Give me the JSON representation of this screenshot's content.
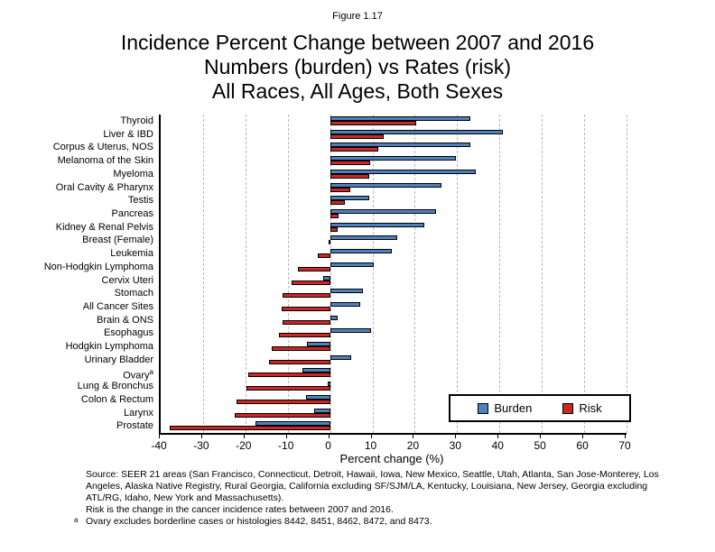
{
  "figure_label": "Figure 1.17",
  "title_lines": [
    "Incidence Percent Change between 2007 and 2016",
    "Numbers (burden) vs Rates (risk)",
    "All Races, All Ages, Both Sexes"
  ],
  "chart_data": {
    "type": "bar",
    "orientation": "horizontal",
    "xlabel": "Percent change (%)",
    "xlim": [
      -40,
      70
    ],
    "xticks": [
      -40,
      -30,
      -20,
      -10,
      0,
      10,
      20,
      30,
      40,
      50,
      60,
      70
    ],
    "grid": "dashed vertical at each 10",
    "legend_position": "inside bottom-right",
    "categories": [
      {
        "label": "Thyroid"
      },
      {
        "label": "Liver & IBD"
      },
      {
        "label": "Corpus & Uterus, NOS"
      },
      {
        "label": "Melanoma of the Skin"
      },
      {
        "label": "Myeloma"
      },
      {
        "label": "Oral Cavity & Pharynx"
      },
      {
        "label": "Testis"
      },
      {
        "label": "Pancreas"
      },
      {
        "label": "Kidney & Renal Pelvis"
      },
      {
        "label": "Breast (Female)"
      },
      {
        "label": "Leukemia"
      },
      {
        "label": "Non-Hodgkin Lymphoma"
      },
      {
        "label": "Cervix Uteri"
      },
      {
        "label": "Stomach"
      },
      {
        "label": "All Cancer Sites"
      },
      {
        "label": "Brain & ONS"
      },
      {
        "label": "Esophagus"
      },
      {
        "label": "Hodgkin Lymphoma"
      },
      {
        "label": "Urinary Bladder"
      },
      {
        "label": "Ovary",
        "sup": "a"
      },
      {
        "label": "Lung & Bronchus"
      },
      {
        "label": "Colon & Rectum"
      },
      {
        "label": "Larynx"
      },
      {
        "label": "Prostate"
      }
    ],
    "series": [
      {
        "name": "Burden",
        "color": "#4f81bd",
        "values": [
          33.1,
          40.7,
          33.1,
          29.7,
          34.3,
          26.3,
          9.2,
          25.1,
          22.3,
          15.9,
          14.6,
          10.3,
          -1.6,
          7.7,
          7.1,
          1.7,
          9.6,
          -5.5,
          4.9,
          -6.5,
          -0.6,
          -5.7,
          -3.8,
          -17.6
        ]
      },
      {
        "name": "Risk",
        "color": "#cc2626",
        "values": [
          20.3,
          12.6,
          11.4,
          9.5,
          9.3,
          4.8,
          3.5,
          2.0,
          1.7,
          -0.3,
          -2.9,
          -7.6,
          -9.0,
          -11.3,
          -11.5,
          -11.3,
          -12.0,
          -13.7,
          -14.5,
          -19.3,
          -19.7,
          -22.0,
          -22.5,
          -37.9
        ]
      }
    ]
  },
  "footnotes": {
    "source": "Source: SEER 21 areas (San Francisco, Connecticut, Detroit, Hawaii, Iowa, New Mexico, Seattle, Utah, Atlanta, San Jose-Monterey, Los Angeles, Alaska Native Registry, Rural Georgia, California excluding SF/SJM/LA, Kentucky, Louisiana, New Jersey, Georgia excluding ATL/RG, Idaho, New York and Massachusetts).",
    "risk_note": "Risk is the change in the cancer incidence rates between 2007 and 2016.",
    "ovary_marker": "a",
    "ovary_note": "Ovary excludes borderline cases or histologies 8442, 8451, 8462, 8472, and 8473."
  }
}
